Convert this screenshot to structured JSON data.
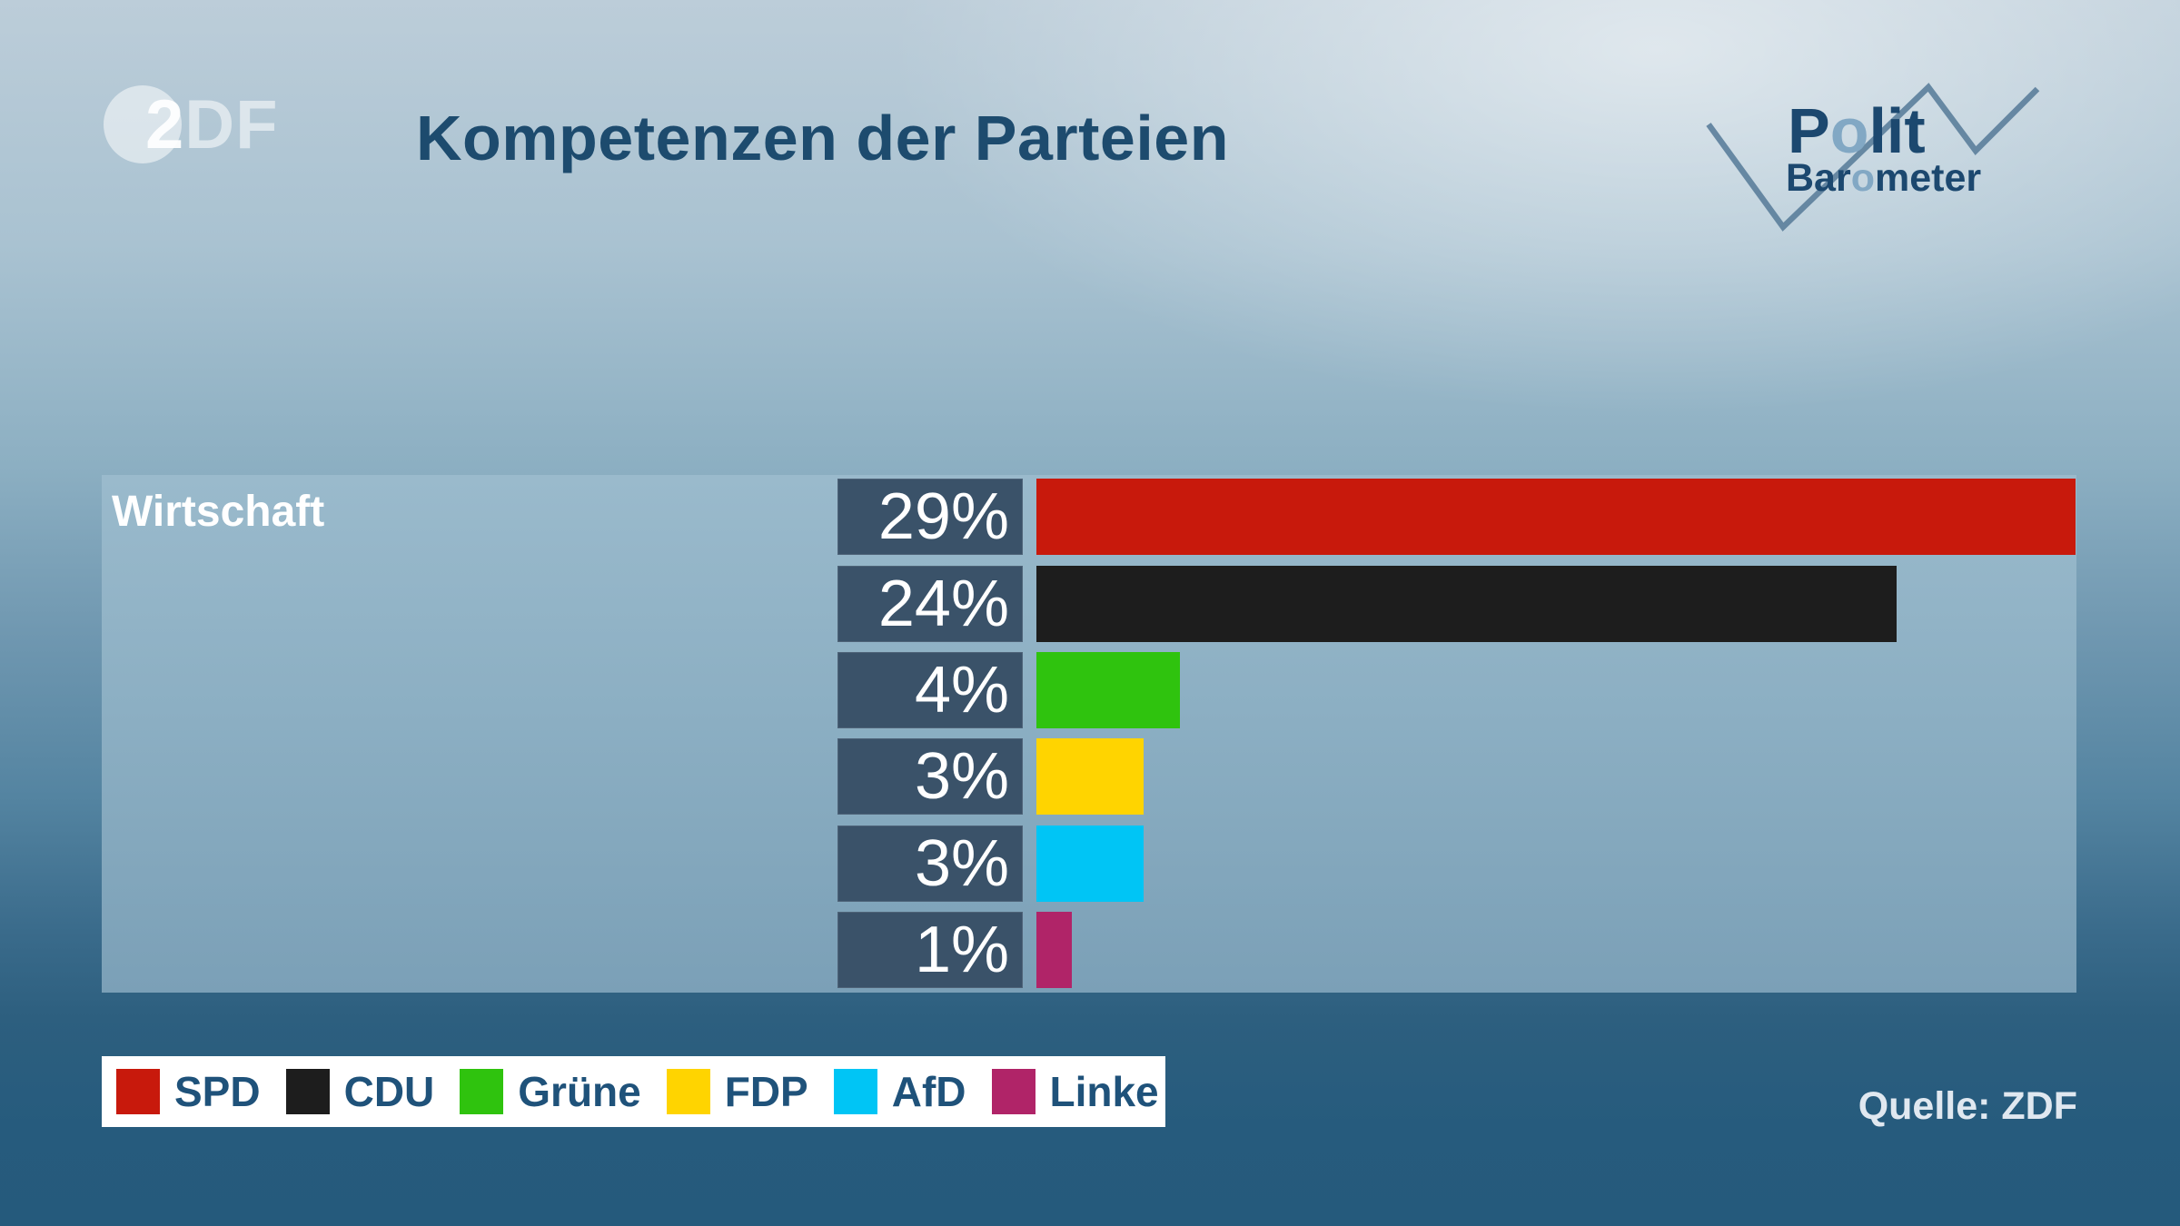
{
  "header": {
    "title": "Kompetenzen der Parteien",
    "zdf_logo": {
      "two": "2",
      "df": "DF"
    },
    "polit_logo": {
      "polit_p": "P",
      "polit_o": "o",
      "polit_rest": "lit",
      "baro_pre": "Bar",
      "baro_o": "o",
      "baro_rest": "meter"
    }
  },
  "chart_data": {
    "type": "bar",
    "orientation": "horizontal",
    "title": "Kompetenzen der Parteien",
    "group_label": "Wirtschaft",
    "categories": [
      "SPD",
      "CDU",
      "Grüne",
      "FDP",
      "AfD",
      "Linke"
    ],
    "values": [
      29,
      24,
      4,
      3,
      3,
      1
    ],
    "value_labels": [
      "29%",
      "24%",
      "4%",
      "3%",
      "3%",
      "1%"
    ],
    "colors": [
      "#c8190c",
      "#1d1d1d",
      "#2fc30e",
      "#ffd400",
      "#00c5f5",
      "#b02468"
    ],
    "unit": "%",
    "xlim": [
      0,
      29
    ],
    "grid": false,
    "legend_position": "bottom-left"
  },
  "footer": {
    "source": "Quelle: ZDF"
  }
}
